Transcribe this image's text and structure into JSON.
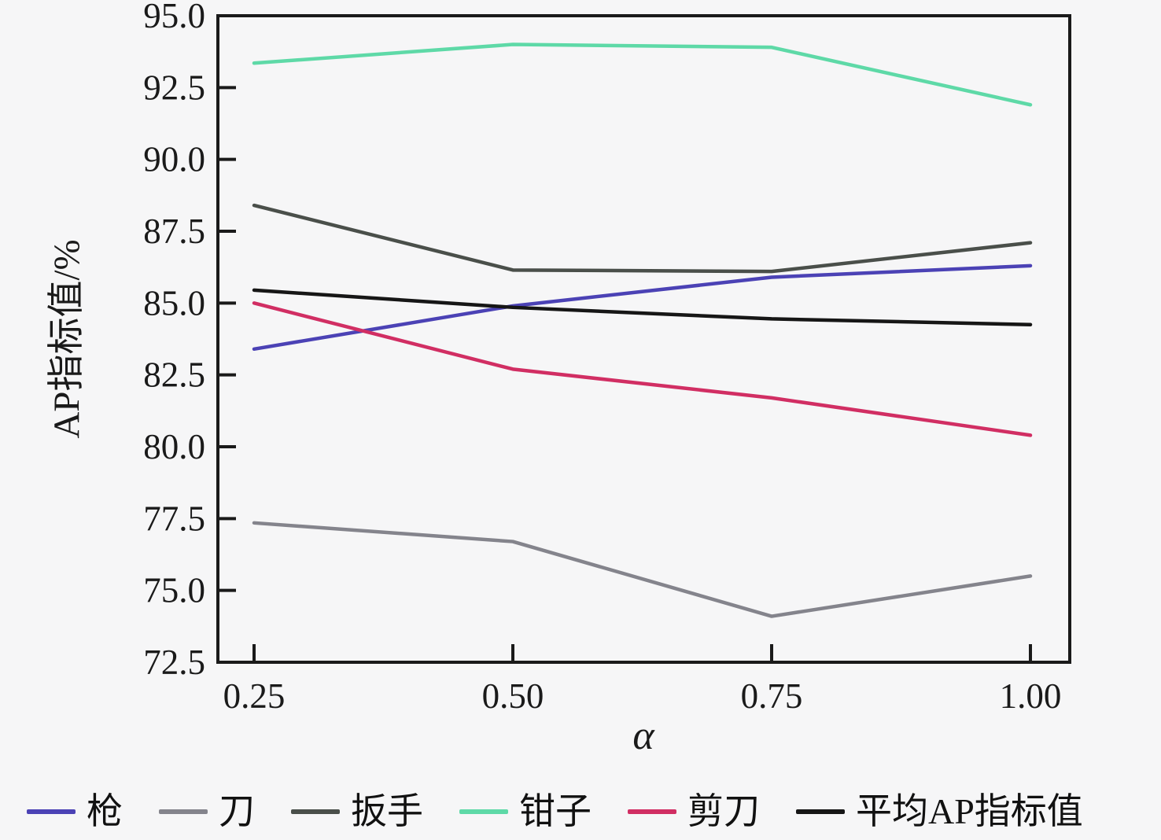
{
  "figure": {
    "background": "#f6f6f7",
    "axis_color": "#1a1a1a",
    "tick_label_color": "#1a1a1a"
  },
  "chart_data": {
    "type": "line",
    "title": "",
    "xlabel": "α",
    "ylabel": "AP指标值/%",
    "x": [
      0.25,
      0.5,
      0.75,
      1.0
    ],
    "x_tick_labels": [
      "0.25",
      "0.50",
      "0.75",
      "1.00"
    ],
    "y_ticks": [
      95.0,
      92.5,
      90.0,
      87.5,
      85.0,
      82.5,
      80.0,
      77.5,
      75.0,
      72.5
    ],
    "y_tick_labels": [
      "95.0",
      "92.5",
      "90.0",
      "87.5",
      "85.0",
      "82.5",
      "80.0",
      "77.5",
      "75.0",
      "72.5"
    ],
    "xlim": [
      0.215,
      1.038
    ],
    "ylim": [
      72.5,
      95.0
    ],
    "grid": false,
    "legend_position": "bottom",
    "series": [
      {
        "name": "枪",
        "color": "#4b42b5",
        "values": [
          83.4,
          84.9,
          85.9,
          86.3
        ]
      },
      {
        "name": "刀",
        "color": "#84848c",
        "values": [
          77.35,
          76.7,
          74.1,
          75.5
        ]
      },
      {
        "name": "扳手",
        "color": "#4a4f4a",
        "values": [
          88.4,
          86.15,
          86.1,
          87.1
        ]
      },
      {
        "name": "钳子",
        "color": "#5ed9a7",
        "values": [
          93.35,
          94.0,
          93.9,
          91.9
        ]
      },
      {
        "name": "剪刀",
        "color": "#d12e63",
        "values": [
          85.0,
          82.7,
          81.7,
          80.4
        ]
      },
      {
        "name": "平均AP指标值",
        "color": "#161616",
        "values": [
          85.45,
          84.85,
          84.45,
          84.25
        ]
      }
    ]
  }
}
